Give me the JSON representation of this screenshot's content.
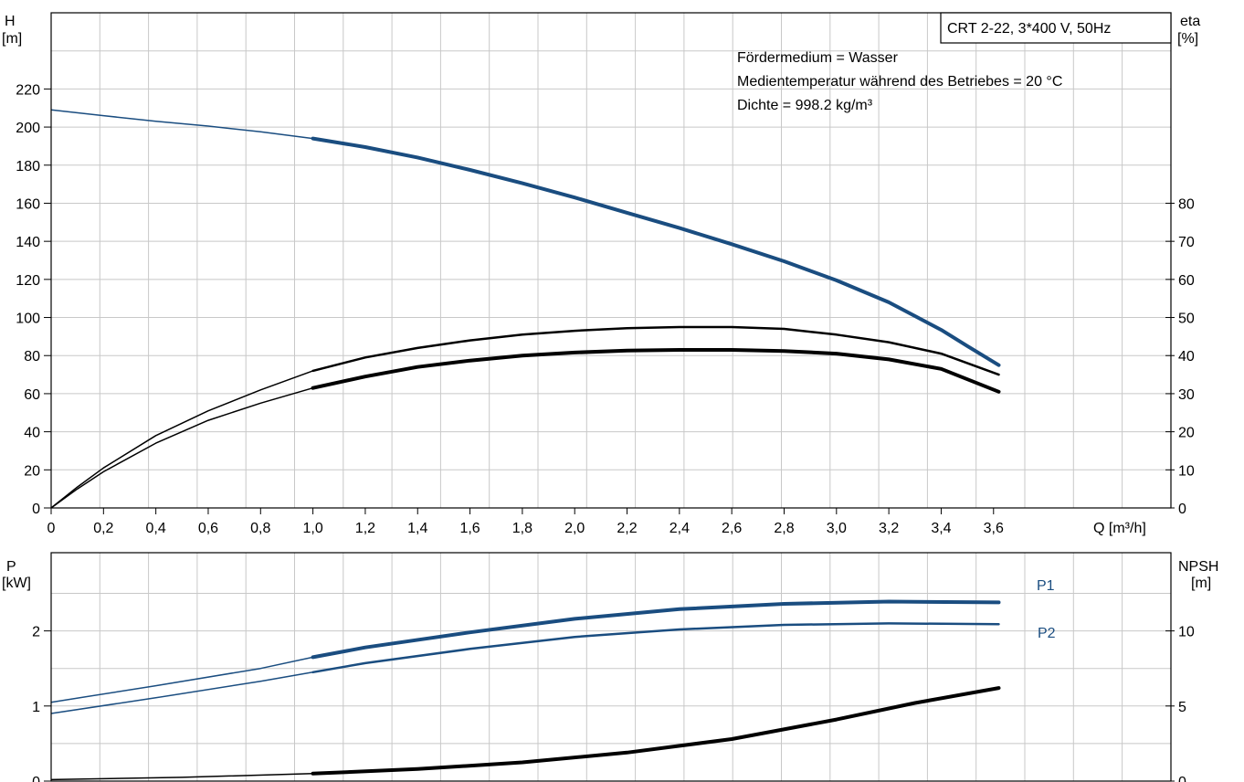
{
  "colors": {
    "blue": "#1a4d80",
    "black": "#000000",
    "grid": "#c8c8c8"
  },
  "info": {
    "model": "CRT 2-22, 3*400 V, 50Hz",
    "medium": "Fördermedium = Wasser",
    "temperature": "Medientemperatur während des Betriebes = 20 °C",
    "density": "Dichte = 998.2 kg/m³"
  },
  "chart_data": [
    {
      "type": "line",
      "axes": {
        "left_label": "H",
        "left_unit": "[m]",
        "right_label": "eta",
        "right_unit": "[%]",
        "x_label": "Q [m³/h]"
      },
      "xlim": [
        0,
        3.9
      ],
      "ylim": [
        0,
        240
      ],
      "y2lim": [
        0,
        120
      ],
      "x_ticks": [
        "0",
        "0,2",
        "0,4",
        "0,6",
        "0,8",
        "1,0",
        "1,2",
        "1,4",
        "1,6",
        "1,8",
        "2,0",
        "2,2",
        "2,4",
        "2,6",
        "2,8",
        "3,0",
        "3,2",
        "3,4",
        "3,6"
      ],
      "y_ticks": [
        "0",
        "20",
        "40",
        "60",
        "80",
        "100",
        "120",
        "140",
        "160",
        "180",
        "200",
        "220"
      ],
      "y2_ticks": [
        "0",
        "10",
        "20",
        "30",
        "40",
        "50",
        "60",
        "70",
        "80"
      ],
      "series": [
        {
          "id": "head",
          "axis": "left",
          "color": "#1a4d80",
          "x": [
            0,
            0.2,
            0.4,
            0.6,
            0.8,
            1.0,
            1.2,
            1.4,
            1.6,
            1.8,
            2.0,
            2.2,
            2.4,
            2.6,
            2.8,
            3.0,
            3.2,
            3.4,
            3.5,
            3.62
          ],
          "y": [
            209,
            206,
            203,
            200.5,
            197.5,
            194,
            189.5,
            184,
            177.5,
            170.5,
            163,
            155,
            147,
            138.5,
            129.5,
            119.5,
            108,
            93.5,
            85,
            75
          ]
        },
        {
          "id": "eta-upper",
          "axis": "right",
          "color": "#000000",
          "x": [
            0,
            0.1,
            0.2,
            0.4,
            0.6,
            0.8,
            1.0,
            1.2,
            1.4,
            1.6,
            1.8,
            2.0,
            2.2,
            2.4,
            2.6,
            2.8,
            3.0,
            3.2,
            3.4,
            3.62
          ],
          "y": [
            0,
            5.5,
            10.5,
            19,
            25.5,
            31,
            36,
            39.5,
            42,
            44,
            45.5,
            46.5,
            47.2,
            47.5,
            47.5,
            47,
            45.5,
            43.5,
            40.5,
            35
          ]
        },
        {
          "id": "eta-lower",
          "axis": "right",
          "color": "#000000",
          "x": [
            0,
            0.1,
            0.2,
            0.4,
            0.6,
            0.8,
            1.0,
            1.2,
            1.4,
            1.6,
            1.8,
            2.0,
            2.2,
            2.4,
            2.6,
            2.8,
            3.0,
            3.2,
            3.4,
            3.62
          ],
          "y": [
            0,
            5,
            9.5,
            17,
            23,
            27.5,
            31.5,
            34.5,
            37,
            38.7,
            40,
            40.8,
            41.3,
            41.5,
            41.5,
            41.2,
            40.5,
            39,
            36.5,
            30.5
          ]
        }
      ]
    },
    {
      "type": "line",
      "axes": {
        "left_label": "P",
        "left_unit": "[kW]",
        "right_label": "NPSH",
        "right_unit": "[m]"
      },
      "xlim": [
        0,
        3.9
      ],
      "ylim": [
        0,
        3.0
      ],
      "y2lim": [
        0,
        15
      ],
      "y_ticks": [
        "0",
        "1",
        "2"
      ],
      "y2_ticks": [
        "0",
        "5",
        "10"
      ],
      "series": [
        {
          "id": "P1",
          "name": "P1",
          "axis": "left",
          "color": "#1a4d80",
          "x": [
            0,
            0.4,
            0.8,
            1.0,
            1.2,
            1.6,
            2.0,
            2.4,
            2.8,
            3.2,
            3.62
          ],
          "y": [
            1.05,
            1.27,
            1.5,
            1.65,
            1.78,
            1.98,
            2.16,
            2.29,
            2.36,
            2.39,
            2.38
          ]
        },
        {
          "id": "P2",
          "name": "P2",
          "axis": "left",
          "color": "#1a4d80",
          "x": [
            0,
            0.4,
            0.8,
            1.0,
            1.2,
            1.6,
            2.0,
            2.4,
            2.8,
            3.2,
            3.62
          ],
          "y": [
            0.9,
            1.11,
            1.33,
            1.45,
            1.57,
            1.76,
            1.92,
            2.02,
            2.08,
            2.1,
            2.09
          ]
        },
        {
          "id": "npsh",
          "axis": "right",
          "color": "#000000",
          "x": [
            0,
            0.5,
            1.0,
            1.4,
            1.8,
            2.2,
            2.6,
            3.0,
            3.3,
            3.62
          ],
          "y": [
            0.1,
            0.25,
            0.5,
            0.8,
            1.25,
            1.9,
            2.8,
            4.1,
            5.2,
            6.2
          ]
        }
      ]
    }
  ]
}
